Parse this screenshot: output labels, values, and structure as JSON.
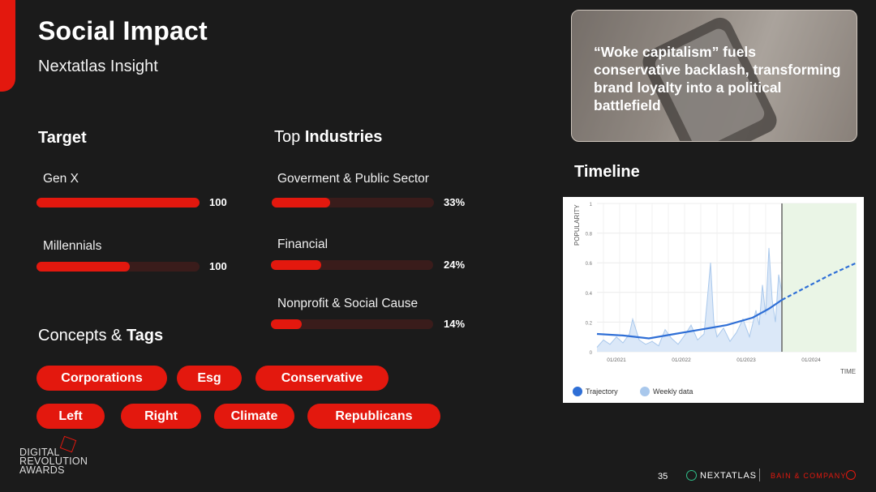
{
  "header": {
    "title": "Social Impact",
    "subtitle": "Nextatlas Insight"
  },
  "target": {
    "heading": "Target",
    "items": [
      {
        "label": "Gen X",
        "value": "100",
        "fill": 1.0
      },
      {
        "label": "Millennials",
        "value": "100",
        "fill": 0.57
      }
    ]
  },
  "industries": {
    "heading_prefix": "Top",
    "heading_bold": "Industries",
    "items": [
      {
        "label": "Goverment & Public Sector",
        "value": "33%",
        "fill": 0.36
      },
      {
        "label": "Financial",
        "value": "24%",
        "fill": 0.31
      },
      {
        "label": "Nonprofit & Social Cause",
        "value": "14%",
        "fill": 0.19
      }
    ]
  },
  "concepts": {
    "heading_prefix": "Concepts &",
    "heading_bold": "Tags",
    "tags": [
      "Corporations",
      "Esg",
      "Conservative",
      "Left",
      "Right",
      "Climate",
      "Republicans"
    ]
  },
  "quote": {
    "text": "“Woke capitalism” fuels conservative backlash, transforming brand loyalty into a political battlefield"
  },
  "timeline": {
    "heading": "Timeline"
  },
  "chart_data": {
    "type": "line",
    "ylabel": "POPULARITY",
    "xlabel": "TIME",
    "ylim": [
      0,
      1
    ],
    "yticks": [
      "0",
      "0.2",
      "0.4",
      "0.6",
      "0.8",
      "1"
    ],
    "xticks": [
      "01/2021",
      "01/2022",
      "01/2023",
      "01/2024"
    ],
    "legend": [
      "Trajectory",
      "Weekly data"
    ],
    "colors": {
      "trajectory": "#2f6fd6",
      "weekly": "#a9c8ec",
      "forecast_zone": "#eaf5e6"
    },
    "series": [
      {
        "name": "Trajectory",
        "x": [
          2020.8,
          2021.2,
          2021.6,
          2022.0,
          2022.4,
          2022.8,
          2023.2,
          2023.45,
          2023.65
        ],
        "values": [
          0.12,
          0.11,
          0.09,
          0.12,
          0.15,
          0.18,
          0.23,
          0.29,
          0.35
        ]
      },
      {
        "name": "Trajectory",
        "x": [
          2023.65,
          2024.0,
          2024.4,
          2024.8
        ],
        "values": [
          0.35,
          0.43,
          0.52,
          0.6
        ]
      },
      {
        "name": "Weekly data",
        "x": [
          2020.8,
          2020.9,
          2021.0,
          2021.1,
          2021.2,
          2021.3,
          2021.35,
          2021.45,
          2021.55,
          2021.65,
          2021.75,
          2021.85,
          2021.95,
          2022.05,
          2022.15,
          2022.25,
          2022.35,
          2022.45,
          2022.5,
          2022.55,
          2022.6,
          2022.65,
          2022.75,
          2022.85,
          2022.95,
          2023.05,
          2023.15,
          2023.25,
          2023.3,
          2023.35,
          2023.4,
          2023.45,
          2023.5,
          2023.55,
          2023.6,
          2023.65
        ],
        "values": [
          0.03,
          0.08,
          0.05,
          0.1,
          0.06,
          0.12,
          0.22,
          0.08,
          0.05,
          0.07,
          0.04,
          0.15,
          0.09,
          0.05,
          0.11,
          0.18,
          0.08,
          0.12,
          0.35,
          0.6,
          0.2,
          0.1,
          0.16,
          0.07,
          0.13,
          0.22,
          0.1,
          0.28,
          0.18,
          0.45,
          0.25,
          0.7,
          0.35,
          0.2,
          0.52,
          0.4
        ]
      }
    ],
    "marker_x": 2023.65,
    "forecast_start": 2023.65
  },
  "footer": {
    "page": "35",
    "nextatlas": "NEXTATLAS",
    "bain": "BAIN & COMPANY",
    "dra": [
      "DIGITAL",
      "REVOLUTION",
      "AWARDS"
    ]
  }
}
